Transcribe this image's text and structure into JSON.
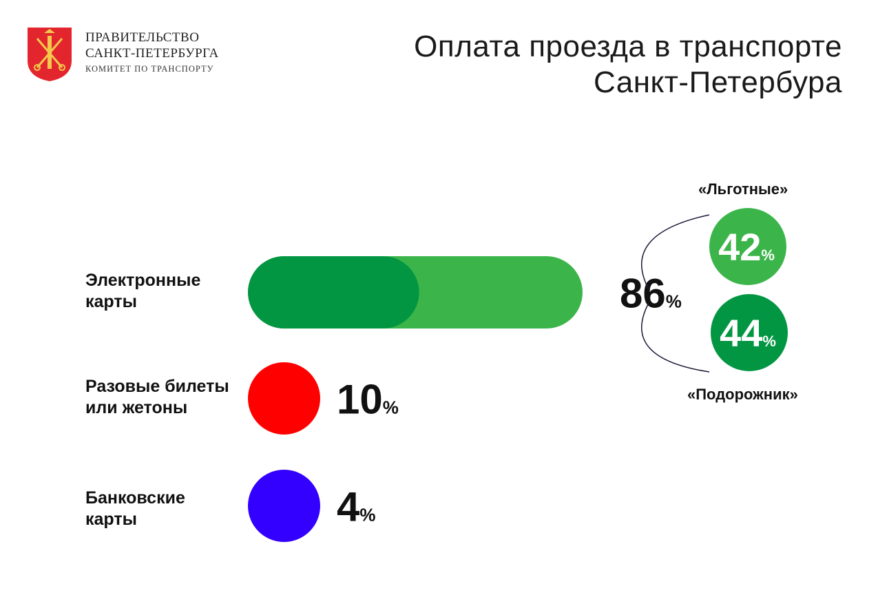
{
  "header": {
    "org_line1": "ПРАВИТЕЛЬСТВО",
    "org_line2": "САНКТ-ПЕТЕРБУРГА",
    "org_line3": "КОМИТЕТ ПО ТРАНСПОРТУ",
    "title_line1": "Оплата проезда в транспорте",
    "title_line2": "Санкт-Петербура"
  },
  "colors": {
    "dark_green": "#039642",
    "light_green": "#3bb54a",
    "red": "#ff0000",
    "blue": "#3300ff",
    "emblem_red": "#e3262d",
    "emblem_gold": "#f2c94c"
  },
  "chart_data": {
    "type": "bar",
    "title": "Оплата проезда в транспорте Санкт-Петербура",
    "unit": "%",
    "categories": [
      {
        "line1": "Электронные",
        "line2": "карты"
      },
      {
        "line1": "Разовые билеты",
        "line2": "или жетоны"
      },
      {
        "line1": "Банковские",
        "line2": "карты"
      }
    ],
    "values": [
      86,
      10,
      4
    ],
    "value_labels": [
      "86",
      "10",
      "4"
    ],
    "breakdown": {
      "parent_category_index": 0,
      "items": [
        {
          "name": "«Льготные»",
          "value": 42,
          "label": "42"
        },
        {
          "name": "«Подорожник»",
          "value": 44,
          "label": "44"
        }
      ]
    }
  }
}
